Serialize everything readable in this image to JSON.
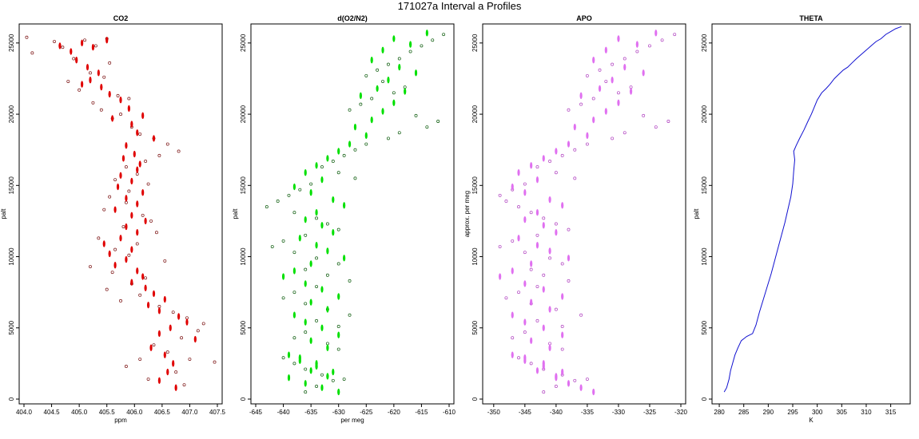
{
  "figure_title": "171027a   Interval a Profiles",
  "chart_data": [
    {
      "type": "scatter",
      "title": "CO2",
      "xlabel": "ppm",
      "ylabel": "palt",
      "xlim": [
        404.0,
        407.5
      ],
      "ylim": [
        0,
        26000
      ],
      "xticks": [
        404.0,
        404.5,
        405.0,
        405.5,
        406.0,
        406.5,
        407.0,
        407.5
      ],
      "xtick_labels": [
        "404.0",
        "404.5",
        "405.0",
        "405.5",
        "406.0",
        "406.5",
        "407.0",
        "407.5"
      ],
      "yticks": [
        0,
        5000,
        10000,
        15000,
        20000,
        25000
      ],
      "ytick_labels": [
        "0",
        "5000",
        "10000",
        "15000",
        "20000",
        "25000"
      ],
      "series": [
        {
          "marker": "open-circle",
          "color": "#7a1010",
          "x": [
            404.05,
            404.15,
            404.55,
            404.7,
            404.9,
            405.1,
            405.3,
            405.5,
            405.55,
            405.2,
            404.8,
            405.0,
            405.45,
            405.7,
            405.25,
            405.4,
            405.9,
            405.6,
            405.95,
            406.1,
            405.75,
            406.35,
            406.6,
            406.8,
            406.45,
            406.2,
            405.85,
            406.05,
            405.65,
            406.25,
            405.9,
            405.55,
            405.85,
            405.45,
            406.15,
            406.3,
            405.8,
            406.4,
            405.35,
            406.05,
            405.65,
            405.9,
            406.55,
            405.2,
            405.6,
            406.2,
            405.95,
            405.5,
            406.1,
            405.75,
            406.45,
            406.7,
            406.95,
            407.25,
            407.15,
            406.85,
            406.35,
            406.6,
            406.1,
            405.85,
            407.0,
            406.75,
            407.45,
            406.25,
            406.9
          ],
          "y": [
            25400,
            24300,
            25100,
            24700,
            23900,
            25200,
            24800,
            25300,
            23600,
            22900,
            22300,
            21700,
            22600,
            21300,
            20800,
            20300,
            21100,
            19700,
            19100,
            18600,
            20000,
            18300,
            17900,
            17400,
            17100,
            16700,
            16300,
            15800,
            15400,
            15100,
            14600,
            14200,
            13800,
            13300,
            12900,
            12500,
            12100,
            11700,
            11300,
            10900,
            10500,
            10100,
            9700,
            9300,
            8900,
            8500,
            8100,
            7700,
            7300,
            6900,
            6500,
            6100,
            5700,
            5300,
            4800,
            4300,
            3800,
            3300,
            2800,
            2300,
            2800,
            1900,
            2600,
            1400,
            1000
          ]
        },
        {
          "marker": "filled-dash",
          "color": "#e00000",
          "x": [
            404.65,
            404.85,
            405.05,
            405.25,
            405.5,
            404.95,
            405.15,
            405.35,
            405.2,
            405.4,
            405.05,
            405.55,
            405.75,
            405.9,
            405.6,
            405.95,
            406.15,
            406.05,
            406.35,
            405.85,
            406.0,
            405.8,
            406.1,
            406.05,
            405.75,
            405.95,
            405.7,
            406.15,
            405.85,
            406.05,
            405.65,
            405.95,
            406.2,
            405.85,
            406.05,
            405.75,
            405.45,
            405.95,
            405.55,
            405.85,
            405.65,
            406.05,
            406.15,
            405.95,
            406.2,
            406.35,
            406.55,
            406.25,
            406.45,
            406.8,
            406.95,
            406.65,
            406.45,
            407.1,
            406.3,
            406.55,
            406.7,
            406.6,
            406.45,
            406.75
          ],
          "y": [
            24800,
            24400,
            25000,
            24700,
            25200,
            23800,
            23300,
            22900,
            22400,
            21900,
            22100,
            21400,
            21000,
            20400,
            19700,
            19300,
            19900,
            18700,
            18300,
            17800,
            17200,
            16900,
            16500,
            16100,
            15700,
            15300,
            14900,
            14500,
            14100,
            13700,
            13300,
            12900,
            12500,
            12100,
            11700,
            11300,
            10900,
            10500,
            10200,
            9800,
            9400,
            9000,
            8600,
            8200,
            7800,
            7400,
            7000,
            6600,
            6200,
            5800,
            5400,
            5000,
            4600,
            4200,
            3600,
            3100,
            2500,
            1900,
            1300,
            800
          ]
        }
      ]
    },
    {
      "type": "scatter",
      "title": "d(O2/N2)",
      "xlabel": "per meg",
      "ylabel": "palt",
      "xlim": [
        -645,
        -610
      ],
      "ylim": [
        0,
        26000
      ],
      "xticks": [
        -645,
        -640,
        -635,
        -630,
        -625,
        -620,
        -615,
        -610
      ],
      "xtick_labels": [
        "-645",
        "-640",
        "-635",
        "-630",
        "-625",
        "-620",
        "-615",
        "-610"
      ],
      "yticks": [
        0,
        5000,
        10000,
        15000,
        20000,
        25000
      ],
      "ytick_labels": [
        "0",
        "5000",
        "10000",
        "15000",
        "20000",
        "25000"
      ],
      "series": [
        {
          "marker": "open-circle",
          "color": "#0a5a0a",
          "x": [
            -611,
            -613,
            -615,
            -617,
            -619,
            -621,
            -623,
            -625,
            -622,
            -618,
            -620,
            -624,
            -626,
            -628,
            -616,
            -612,
            -614,
            -619,
            -621,
            -625,
            -627,
            -629,
            -631,
            -633,
            -630,
            -627,
            -635,
            -637,
            -639,
            -641,
            -643,
            -638,
            -634,
            -632,
            -630,
            -636,
            -640,
            -642,
            -638,
            -634,
            -630,
            -636,
            -632,
            -628,
            -634,
            -638,
            -640,
            -636,
            -632,
            -628,
            -634,
            -630,
            -636,
            -638,
            -632,
            -630,
            -640,
            -638,
            -636,
            -633,
            -631,
            -634,
            -636,
            -629
          ],
          "y": [
            25600,
            25200,
            24800,
            24400,
            23900,
            23500,
            23100,
            22700,
            22300,
            21900,
            21500,
            21100,
            20700,
            20300,
            19900,
            19500,
            19100,
            18700,
            18300,
            17900,
            17500,
            17100,
            16700,
            16300,
            15900,
            15500,
            15100,
            14700,
            14300,
            13900,
            13500,
            13100,
            12700,
            12300,
            11900,
            11500,
            11100,
            10700,
            10300,
            9900,
            9500,
            9100,
            8700,
            8300,
            7900,
            7500,
            7100,
            6700,
            6300,
            5900,
            5500,
            5100,
            4700,
            4300,
            3900,
            3500,
            2900,
            2500,
            2100,
            1700,
            1300,
            900,
            500,
            1400
          ]
        },
        {
          "marker": "filled-dash",
          "color": "#00e000",
          "x": [
            -614,
            -617,
            -620,
            -622,
            -624,
            -619,
            -616,
            -621,
            -623,
            -626,
            -618,
            -620,
            -622,
            -624,
            -627,
            -625,
            -628,
            -630,
            -632,
            -634,
            -636,
            -633,
            -638,
            -635,
            -631,
            -629,
            -634,
            -636,
            -633,
            -631,
            -637,
            -634,
            -632,
            -629,
            -635,
            -638,
            -640,
            -636,
            -633,
            -630,
            -635,
            -632,
            -638,
            -636,
            -633,
            -630,
            -635,
            -632,
            -639,
            -637,
            -634,
            -631,
            -639,
            -636,
            -633,
            -630,
            -637,
            -634,
            -635,
            -632
          ],
          "y": [
            25700,
            24900,
            25300,
            24500,
            23800,
            23300,
            22900,
            22400,
            21800,
            21300,
            21600,
            20800,
            20200,
            19600,
            19100,
            18500,
            17900,
            17400,
            16900,
            16400,
            15900,
            15400,
            14900,
            14500,
            14000,
            13600,
            13100,
            12600,
            12200,
            11700,
            11300,
            10800,
            10400,
            9900,
            9500,
            9000,
            8600,
            8100,
            7700,
            7200,
            6800,
            6300,
            5900,
            5400,
            5000,
            4500,
            4100,
            3600,
            3100,
            2700,
            2300,
            1900,
            1500,
            1100,
            800,
            500,
            2900,
            2500,
            2000,
            1600
          ]
        }
      ]
    },
    {
      "type": "scatter",
      "title": "APO",
      "xlabel": "",
      "ylabel": "approx. per meg",
      "xlim": [
        -351,
        -320
      ],
      "ylim": [
        0,
        26000
      ],
      "xticks": [
        -350,
        -345,
        -340,
        -335,
        -330,
        -325,
        -320
      ],
      "xtick_labels": [
        "-350",
        "-345",
        "-340",
        "-335",
        "-330",
        "-325",
        "-320"
      ],
      "yticks": [
        0,
        5000,
        10000,
        15000,
        20000,
        25000
      ],
      "ytick_labels": [
        "0",
        "5000",
        "10000",
        "15000",
        "20000",
        "25000"
      ],
      "series": [
        {
          "marker": "open-circle",
          "color": "#b040c0",
          "x": [
            -321,
            -323,
            -325,
            -327,
            -329,
            -331,
            -333,
            -335,
            -332,
            -328,
            -330,
            -334,
            -336,
            -338,
            -326,
            -322,
            -324,
            -329,
            -331,
            -335,
            -337,
            -339,
            -341,
            -343,
            -340,
            -337,
            -345,
            -347,
            -349,
            -348,
            -346,
            -344,
            -342,
            -340,
            -338,
            -343,
            -347,
            -349,
            -345,
            -341,
            -339,
            -344,
            -342,
            -338,
            -343,
            -346,
            -348,
            -344,
            -340,
            -336,
            -343,
            -339,
            -345,
            -347,
            -341,
            -339,
            -346,
            -344,
            -342,
            -339,
            -337,
            -340,
            -342,
            -335
          ],
          "y": [
            25600,
            25200,
            24800,
            24400,
            23900,
            23500,
            23100,
            22700,
            22300,
            21900,
            21500,
            21100,
            20700,
            20300,
            19900,
            19500,
            19100,
            18700,
            18300,
            17900,
            17500,
            17100,
            16700,
            16300,
            15900,
            15500,
            15100,
            14700,
            14300,
            13900,
            13500,
            13100,
            12700,
            12300,
            11900,
            11500,
            11100,
            10700,
            10300,
            9900,
            9500,
            9100,
            8700,
            8300,
            7900,
            7500,
            7100,
            6700,
            6300,
            5900,
            5500,
            5100,
            4700,
            4300,
            3900,
            3500,
            2900,
            2500,
            2100,
            1700,
            1300,
            900,
            500,
            1400
          ]
        },
        {
          "marker": "filled-dash",
          "color": "#e070f0",
          "x": [
            -324,
            -327,
            -330,
            -332,
            -334,
            -329,
            -326,
            -331,
            -333,
            -336,
            -328,
            -330,
            -332,
            -334,
            -337,
            -335,
            -338,
            -340,
            -342,
            -344,
            -346,
            -343,
            -347,
            -345,
            -341,
            -339,
            -343,
            -345,
            -342,
            -340,
            -346,
            -343,
            -341,
            -338,
            -344,
            -347,
            -349,
            -345,
            -342,
            -339,
            -344,
            -341,
            -347,
            -345,
            -342,
            -339,
            -344,
            -341,
            -347,
            -345,
            -342,
            -339,
            -340,
            -338,
            -336,
            -334,
            -345,
            -342,
            -343,
            -340
          ],
          "y": [
            25700,
            24900,
            25300,
            24500,
            23800,
            23300,
            22900,
            22400,
            21800,
            21300,
            21600,
            20800,
            20200,
            19600,
            19100,
            18500,
            17900,
            17400,
            16900,
            16400,
            15900,
            15400,
            14900,
            14500,
            14000,
            13600,
            13100,
            12600,
            12200,
            11700,
            11300,
            10800,
            10400,
            9900,
            9500,
            9000,
            8600,
            8100,
            7700,
            7200,
            6800,
            6300,
            5900,
            5400,
            5000,
            4500,
            4100,
            3600,
            3100,
            2700,
            2300,
            1900,
            1500,
            1100,
            800,
            500,
            2900,
            2500,
            2000,
            1600
          ]
        }
      ]
    },
    {
      "type": "line",
      "title": "THETA",
      "xlabel": "K",
      "ylabel": "palt",
      "xlim": [
        279.5,
        318
      ],
      "ylim": [
        0,
        26000
      ],
      "xticks": [
        280,
        285,
        290,
        295,
        300,
        305,
        310,
        315
      ],
      "xtick_labels": [
        "280",
        "285",
        "290",
        "295",
        "300",
        "305",
        "310",
        "315"
      ],
      "yticks": [
        0,
        5000,
        10000,
        15000,
        20000,
        25000
      ],
      "ytick_labels": [
        "0",
        "5000",
        "10000",
        "15000",
        "20000",
        "25000"
      ],
      "series": [
        {
          "color": "#1010d0",
          "x": [
            281.0,
            281.5,
            282.0,
            282.3,
            282.8,
            283.2,
            283.8,
            284.5,
            285.6,
            286.8,
            287.5,
            288.2,
            289.0,
            289.8,
            290.6,
            291.3,
            292.0,
            292.7,
            293.4,
            294.0,
            294.6,
            295.0,
            295.2,
            295.4,
            295.2,
            295.7,
            296.4,
            297.3,
            298.1,
            298.8,
            299.4,
            300.0,
            300.9,
            301.8,
            302.6,
            303.5,
            304.4,
            305.3,
            306.2,
            307.1,
            308.0,
            309.0,
            310.0,
            311.0,
            312.0,
            313.0,
            314.0,
            315.0,
            316.0,
            316.8,
            317.2
          ],
          "y": [
            500,
            800,
            1400,
            2000,
            2600,
            3100,
            3600,
            4100,
            4400,
            4600,
            5200,
            6100,
            7000,
            7900,
            8800,
            9700,
            10600,
            11500,
            12400,
            13300,
            14200,
            15100,
            16000,
            16800,
            17400,
            17800,
            18300,
            18900,
            19500,
            20000,
            20500,
            21000,
            21500,
            21800,
            22100,
            22500,
            22800,
            23100,
            23300,
            23600,
            23900,
            24200,
            24500,
            24800,
            25100,
            25300,
            25600,
            25800,
            26000,
            26100,
            26150
          ]
        }
      ]
    }
  ]
}
